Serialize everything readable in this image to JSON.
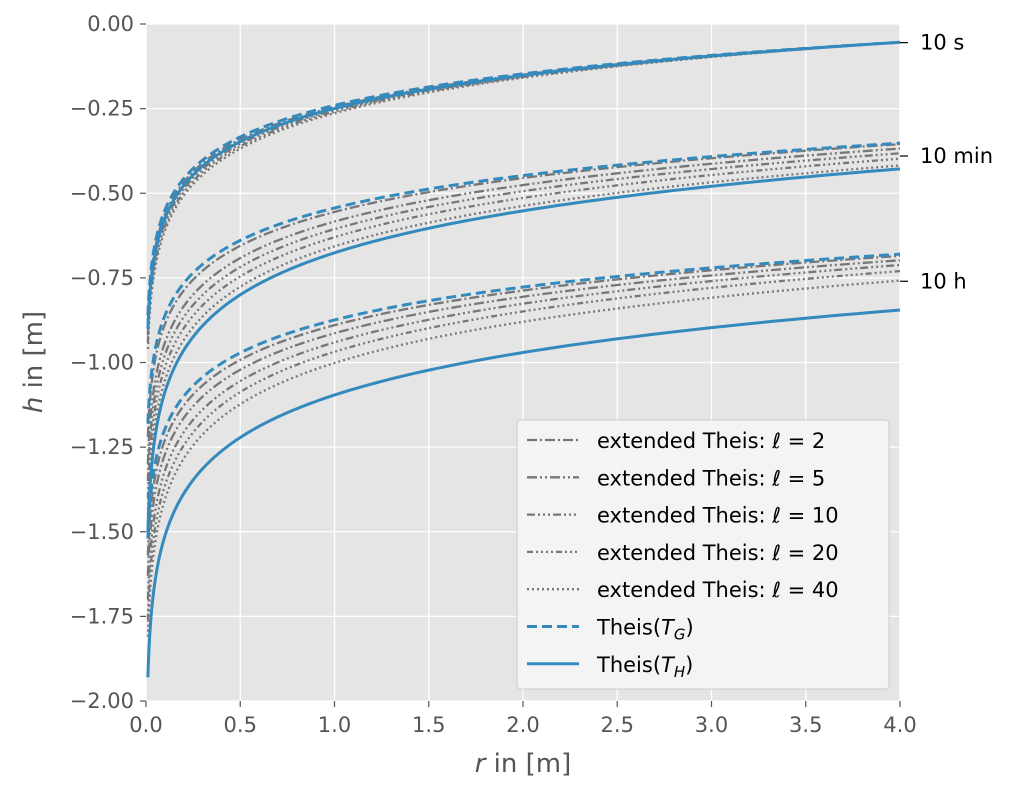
{
  "chart_data": {
    "type": "line",
    "title": "",
    "xlabel": {
      "italic": "r",
      "rest": " in [m]"
    },
    "ylabel": {
      "italic": "h",
      "rest": " in [m]"
    },
    "xlim": [
      0,
      4.0
    ],
    "ylim": [
      -2.0,
      0.0
    ],
    "xticks": [
      "0.0",
      "0.5",
      "1.0",
      "1.5",
      "2.0",
      "2.5",
      "3.0",
      "3.5",
      "4.0"
    ],
    "yticks": [
      "0.00",
      "−0.25",
      "−0.50",
      "−0.75",
      "−1.00",
      "−1.25",
      "−1.50",
      "−1.75",
      "−2.00"
    ],
    "grid": true,
    "legend_position": "lower-right",
    "time_labels": [
      {
        "text": "10 s",
        "y": -0.055
      },
      {
        "text": "10 min",
        "y": -0.39
      },
      {
        "text": "10 h",
        "y": -0.76
      }
    ],
    "colors": {
      "gray": "#777777",
      "blue": "#348abd",
      "background": "#e5e5e5",
      "grid": "#ffffff"
    },
    "series": [
      {
        "name": {
          "prefix": "extended Theis: ",
          "ell": "ℓ",
          "eq": " = 2"
        },
        "style": "ext2",
        "color": "#777777",
        "curves": [
          {
            "r": [
              0.01,
              4.0
            ],
            "h": [
              -0.88,
              -0.054
            ]
          },
          {
            "r": [
              0.01,
              4.0
            ],
            "h": [
              -1.22,
              -0.355
            ]
          },
          {
            "r": [
              0.01,
              4.0
            ],
            "h": [
              -1.57,
              -0.685
            ]
          }
        ]
      },
      {
        "name": {
          "prefix": "extended Theis: ",
          "ell": "ℓ",
          "eq": " = 5"
        },
        "style": "ext5",
        "color": "#777777",
        "curves": [
          {
            "r": [
              0.01,
              4.0
            ],
            "h": [
              -0.9,
              -0.054
            ]
          },
          {
            "r": [
              0.01,
              4.0
            ],
            "h": [
              -1.3,
              -0.368
            ]
          },
          {
            "r": [
              0.01,
              4.0
            ],
            "h": [
              -1.63,
              -0.698
            ]
          }
        ]
      },
      {
        "name": {
          "prefix": "extended Theis: ",
          "ell": "ℓ",
          "eq": " = 10"
        },
        "style": "ext10",
        "color": "#777777",
        "curves": [
          {
            "r": [
              0.01,
              4.0
            ],
            "h": [
              -0.92,
              -0.054
            ]
          },
          {
            "r": [
              0.01,
              4.0
            ],
            "h": [
              -1.35,
              -0.382
            ]
          },
          {
            "r": [
              0.01,
              4.0
            ],
            "h": [
              -1.7,
              -0.712
            ]
          }
        ]
      },
      {
        "name": {
          "prefix": "extended Theis: ",
          "ell": "ℓ",
          "eq": " = 20"
        },
        "style": "ext20",
        "color": "#777777",
        "curves": [
          {
            "r": [
              0.01,
              4.0
            ],
            "h": [
              -0.94,
              -0.054
            ]
          },
          {
            "r": [
              0.01,
              4.0
            ],
            "h": [
              -1.4,
              -0.398
            ]
          },
          {
            "r": [
              0.01,
              4.0
            ],
            "h": [
              -1.76,
              -0.73
            ]
          }
        ]
      },
      {
        "name": {
          "prefix": "extended Theis: ",
          "ell": "ℓ",
          "eq": " = 40"
        },
        "style": "ext40",
        "color": "#777777",
        "curves": [
          {
            "r": [
              0.01,
              4.0
            ],
            "h": [
              -0.96,
              -0.054
            ]
          },
          {
            "r": [
              0.01,
              4.0
            ],
            "h": [
              -1.45,
              -0.418
            ]
          },
          {
            "r": [
              0.01,
              4.0
            ],
            "h": [
              -1.81,
              -0.758
            ]
          }
        ]
      },
      {
        "name": {
          "prefix": "Theis(",
          "T": "T",
          "sub": "G",
          "suffix": ")"
        },
        "style": "dashed",
        "color": "#348abd",
        "curves": [
          {
            "r": [
              0.01,
              4.0
            ],
            "h": [
              -0.86,
              -0.054
            ]
          },
          {
            "r": [
              0.01,
              4.0
            ],
            "h": [
              -1.18,
              -0.352
            ]
          },
          {
            "r": [
              0.01,
              4.0
            ],
            "h": [
              -1.52,
              -0.68
            ]
          }
        ]
      },
      {
        "name": {
          "prefix": "Theis(",
          "T": "T",
          "sub": "H",
          "suffix": ")"
        },
        "style": "solid",
        "color": "#348abd",
        "curves": [
          {
            "r": [
              0.01,
              4.0
            ],
            "h": [
              -0.9,
              -0.054
            ]
          },
          {
            "r": [
              0.01,
              4.0
            ],
            "h": [
              -1.5,
              -0.428
            ]
          },
          {
            "r": [
              0.01,
              4.0
            ],
            "h": [
              -1.93,
              -0.845
            ]
          }
        ]
      }
    ]
  }
}
